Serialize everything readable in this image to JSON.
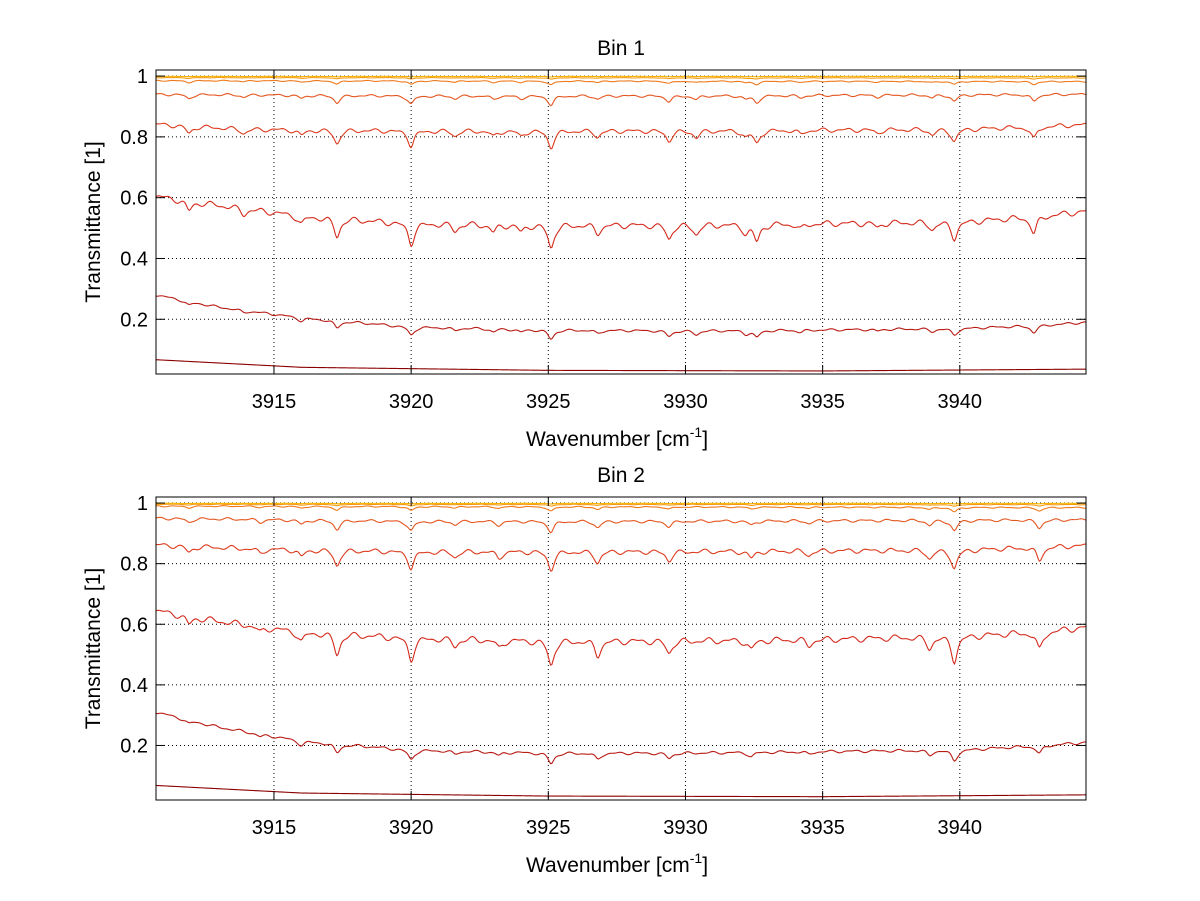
{
  "chart_data": [
    {
      "type": "line",
      "title": "Bin 1",
      "xlabel": "Wavenumber [cm",
      "xlabel_sup": "-1",
      "xlabel_end": "]",
      "ylabel": "Transmittance [1]",
      "xlim": [
        3910.7,
        3944.6
      ],
      "ylim": [
        0.02,
        1.02
      ],
      "xticks": [
        3915,
        3920,
        3925,
        3930,
        3935,
        3940
      ],
      "yticks": [
        0.2,
        0.4,
        0.6,
        0.8,
        1
      ],
      "ytick_labels": [
        "0.2",
        "0.4",
        "0.6",
        "0.8",
        "1"
      ],
      "grid": true,
      "absorption_lines": [
        {
          "x": 3911.9,
          "depth": 0.45
        },
        {
          "x": 3913.9,
          "depth": 0.25
        },
        {
          "x": 3916.0,
          "depth": 0.35
        },
        {
          "x": 3917.3,
          "depth": 0.8
        },
        {
          "x": 3920.0,
          "depth": 0.9
        },
        {
          "x": 3921.6,
          "depth": 0.3
        },
        {
          "x": 3923.0,
          "depth": 0.35
        },
        {
          "x": 3924.0,
          "depth": 0.3
        },
        {
          "x": 3925.1,
          "depth": 1.0
        },
        {
          "x": 3926.8,
          "depth": 0.35
        },
        {
          "x": 3929.4,
          "depth": 0.6
        },
        {
          "x": 3930.4,
          "depth": 0.4
        },
        {
          "x": 3932.2,
          "depth": 0.35
        },
        {
          "x": 3932.6,
          "depth": 0.75
        },
        {
          "x": 3934.2,
          "depth": 0.25
        },
        {
          "x": 3937.0,
          "depth": 0.2
        },
        {
          "x": 3939.0,
          "depth": 0.3
        },
        {
          "x": 3939.8,
          "depth": 0.7
        },
        {
          "x": 3942.7,
          "depth": 0.75
        }
      ],
      "series": [
        {
          "color": "#8b0000",
          "depth": 0.0,
          "base": [
            [
              3910.7,
              0.067
            ],
            [
              3916,
              0.042
            ],
            [
              3925,
              0.032
            ],
            [
              3935,
              0.03
            ],
            [
              3944.6,
              0.036
            ]
          ]
        },
        {
          "color": "#b81b14",
          "depth": 0.03,
          "base": [
            [
              3910.7,
              0.28
            ],
            [
              3913,
              0.24
            ],
            [
              3916,
              0.205
            ],
            [
              3920,
              0.175
            ],
            [
              3925,
              0.165
            ],
            [
              3930,
              0.162
            ],
            [
              3935,
              0.165
            ],
            [
              3940,
              0.17
            ],
            [
              3943,
              0.18
            ],
            [
              3944.6,
              0.19
            ]
          ]
        },
        {
          "color": "#d42a1c",
          "depth": 0.075,
          "base": [
            [
              3910.7,
              0.605
            ],
            [
              3913,
              0.575
            ],
            [
              3916,
              0.54
            ],
            [
              3920,
              0.515
            ],
            [
              3925,
              0.51
            ],
            [
              3930,
              0.51
            ],
            [
              3935,
              0.515
            ],
            [
              3940,
              0.52
            ],
            [
              3943,
              0.54
            ],
            [
              3944.6,
              0.555
            ]
          ]
        },
        {
          "color": "#dc3b1e",
          "depth": 0.055,
          "base": [
            [
              3910.7,
              0.842
            ],
            [
              3914,
              0.825
            ],
            [
              3920,
              0.82
            ],
            [
              3930,
              0.82
            ],
            [
              3940,
              0.825
            ],
            [
              3944.6,
              0.84
            ]
          ]
        },
        {
          "color": "#e4561f",
          "depth": 0.03,
          "base": [
            [
              3910.7,
              0.94
            ],
            [
              3920,
              0.935
            ],
            [
              3930,
              0.935
            ],
            [
              3944.6,
              0.94
            ]
          ]
        },
        {
          "color": "#ee7a1d",
          "depth": 0.013,
          "base": [
            [
              3910.7,
              0.985
            ],
            [
              3944.6,
              0.982
            ]
          ]
        },
        {
          "color": "#f59a12",
          "depth": 0.005,
          "base": [
            [
              3910.7,
              0.995
            ],
            [
              3944.6,
              0.994
            ]
          ]
        },
        {
          "color": "#f7b500",
          "depth": 0.002,
          "base": [
            [
              3910.7,
              0.999
            ],
            [
              3944.6,
              0.999
            ]
          ]
        }
      ]
    },
    {
      "type": "line",
      "title": "Bin 2",
      "xlabel": "Wavenumber [cm",
      "xlabel_sup": "-1",
      "xlabel_end": "]",
      "ylabel": "Transmittance [1]",
      "xlim": [
        3910.7,
        3944.6
      ],
      "ylim": [
        0.02,
        1.02
      ],
      "xticks": [
        3915,
        3920,
        3925,
        3930,
        3935,
        3940
      ],
      "yticks": [
        0.2,
        0.4,
        0.6,
        0.8,
        1
      ],
      "ytick_labels": [
        "0.2",
        "0.4",
        "0.6",
        "0.8",
        "1"
      ],
      "grid": true,
      "absorption_lines": [
        {
          "x": 3911.9,
          "depth": 0.35
        },
        {
          "x": 3914.5,
          "depth": 0.25
        },
        {
          "x": 3916.0,
          "depth": 0.4
        },
        {
          "x": 3917.3,
          "depth": 0.85
        },
        {
          "x": 3920.0,
          "depth": 0.9
        },
        {
          "x": 3921.6,
          "depth": 0.3
        },
        {
          "x": 3923.2,
          "depth": 0.35
        },
        {
          "x": 3925.1,
          "depth": 1.0
        },
        {
          "x": 3926.8,
          "depth": 0.6
        },
        {
          "x": 3929.4,
          "depth": 0.5
        },
        {
          "x": 3932.4,
          "depth": 0.4
        },
        {
          "x": 3934.5,
          "depth": 0.25
        },
        {
          "x": 3938.9,
          "depth": 0.45
        },
        {
          "x": 3939.8,
          "depth": 1.0
        },
        {
          "x": 3942.9,
          "depth": 0.75
        }
      ],
      "series": [
        {
          "color": "#8b0000",
          "depth": 0.0,
          "base": [
            [
              3910.7,
              0.068
            ],
            [
              3916,
              0.043
            ],
            [
              3925,
              0.033
            ],
            [
              3935,
              0.031
            ],
            [
              3944.6,
              0.037
            ]
          ]
        },
        {
          "color": "#b81b14",
          "depth": 0.035,
          "base": [
            [
              3910.7,
              0.31
            ],
            [
              3913,
              0.26
            ],
            [
              3916,
              0.215
            ],
            [
              3920,
              0.185
            ],
            [
              3925,
              0.175
            ],
            [
              3930,
              0.175
            ],
            [
              3935,
              0.18
            ],
            [
              3940,
              0.185
            ],
            [
              3943,
              0.2
            ],
            [
              3944.6,
              0.21
            ]
          ]
        },
        {
          "color": "#d42a1c",
          "depth": 0.08,
          "base": [
            [
              3910.7,
              0.645
            ],
            [
              3913,
              0.61
            ],
            [
              3916,
              0.575
            ],
            [
              3920,
              0.555
            ],
            [
              3925,
              0.545
            ],
            [
              3930,
              0.545
            ],
            [
              3935,
              0.55
            ],
            [
              3940,
              0.56
            ],
            [
              3943,
              0.575
            ],
            [
              3944.6,
              0.59
            ]
          ]
        },
        {
          "color": "#dc3b1e",
          "depth": 0.06,
          "base": [
            [
              3910.7,
              0.862
            ],
            [
              3914,
              0.85
            ],
            [
              3920,
              0.84
            ],
            [
              3930,
              0.84
            ],
            [
              3940,
              0.845
            ],
            [
              3944.6,
              0.86
            ]
          ]
        },
        {
          "color": "#e4561f",
          "depth": 0.035,
          "base": [
            [
              3910.7,
              0.95
            ],
            [
              3920,
              0.94
            ],
            [
              3930,
              0.94
            ],
            [
              3944.6,
              0.945
            ]
          ]
        },
        {
          "color": "#ee7a1d",
          "depth": 0.015,
          "base": [
            [
              3910.7,
              0.99
            ],
            [
              3944.6,
              0.985
            ]
          ]
        },
        {
          "color": "#f59a12",
          "depth": 0.006,
          "base": [
            [
              3910.7,
              0.996
            ],
            [
              3944.6,
              0.995
            ]
          ]
        },
        {
          "color": "#f7b500",
          "depth": 0.002,
          "base": [
            [
              3910.7,
              0.999
            ],
            [
              3944.6,
              0.999
            ]
          ]
        }
      ]
    }
  ]
}
